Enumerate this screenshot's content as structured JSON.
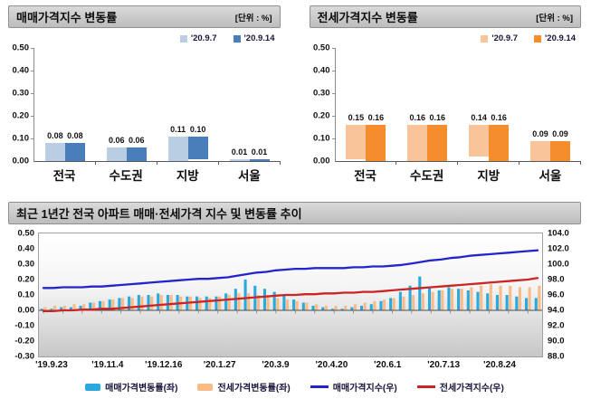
{
  "chart_data": [
    {
      "id": "sale-price-change",
      "type": "bar",
      "title": "매매가격지수 변동률",
      "unit_label": "[단위 : %]",
      "categories": [
        "전국",
        "수도권",
        "지방",
        "서울"
      ],
      "series": [
        {
          "name": "'20.9.7",
          "color": "#b9cde3",
          "values": [
            0.08,
            0.06,
            0.11,
            0.01
          ]
        },
        {
          "name": "'20.9.14",
          "color": "#4a7ebb",
          "values": [
            0.08,
            0.06,
            0.1,
            0.01
          ]
        }
      ],
      "ylim": [
        0,
        0.5
      ],
      "yticks": [
        "0.50",
        "0.40",
        "0.30",
        "0.20",
        "0.10",
        "0.00"
      ],
      "grid": false,
      "legend_position": "top-right",
      "value_labels": true
    },
    {
      "id": "jeonse-price-change",
      "type": "bar",
      "title": "전세가격지수 변동률",
      "unit_label": "[단위 : %]",
      "categories": [
        "전국",
        "수도권",
        "지방",
        "서울"
      ],
      "series": [
        {
          "name": "'20.9.7",
          "color": "#fac49a",
          "values": [
            0.15,
            0.16,
            0.14,
            0.09
          ]
        },
        {
          "name": "'20.9.14",
          "color": "#f58c2e",
          "values": [
            0.16,
            0.16,
            0.16,
            0.09
          ]
        }
      ],
      "ylim": [
        0,
        0.5
      ],
      "yticks": [
        "0.50",
        "0.40",
        "0.30",
        "0.20",
        "0.10",
        "0.00"
      ],
      "grid": false,
      "legend_position": "top-right",
      "value_labels": true
    },
    {
      "id": "trend-combo",
      "type": "combo",
      "title": "최근 1년간 전국 아파트 매매·전세가격 지수 및 변동률 추이",
      "n_points": 52,
      "x_tick_labels": [
        "'19.9.23",
        "'19.11.4",
        "'19.12.16",
        "'20.1.27",
        "'20.3.9",
        "'20.4.20",
        "'20.6.1",
        "'20.7.13",
        "'20.8.24"
      ],
      "x_tick_every_n_points": 6,
      "left_axis": {
        "min": -0.3,
        "max": 0.5,
        "step": 0.1,
        "ticks": [
          "0.50",
          "0.40",
          "0.30",
          "0.20",
          "0.10",
          "0.00",
          "-0.10",
          "-0.20",
          "-0.30"
        ]
      },
      "right_axis": {
        "min": 88.0,
        "max": 104.0,
        "step": 2.0,
        "ticks": [
          "104.0",
          "102.0",
          "100.0",
          "98.0",
          "96.0",
          "94.0",
          "92.0",
          "90.0",
          "88.0"
        ]
      },
      "grid": false,
      "legend_position": "bottom-center",
      "series": [
        {
          "name": "매매가격변동률(좌)",
          "type": "bar",
          "axis": "left",
          "color": "#2aa9dd",
          "values": [
            0.01,
            0.01,
            0.02,
            0.02,
            0.03,
            0.05,
            0.06,
            0.07,
            0.08,
            0.09,
            0.1,
            0.1,
            0.11,
            0.1,
            0.1,
            0.09,
            0.09,
            0.09,
            0.09,
            0.11,
            0.14,
            0.2,
            0.16,
            0.14,
            0.12,
            0.1,
            0.07,
            0.05,
            0.03,
            0.02,
            0.01,
            0.01,
            0.02,
            0.03,
            0.04,
            0.06,
            0.08,
            0.12,
            0.16,
            0.22,
            0.15,
            0.13,
            0.15,
            0.14,
            0.13,
            0.12,
            0.11,
            0.1,
            0.1,
            0.09,
            0.08,
            0.08
          ]
        },
        {
          "name": "전세가격변동률(좌)",
          "type": "bar",
          "axis": "left",
          "color": "#f9bc87",
          "values": [
            0.02,
            0.03,
            0.03,
            0.04,
            0.04,
            0.05,
            0.06,
            0.07,
            0.08,
            0.08,
            0.09,
            0.09,
            0.1,
            0.1,
            0.09,
            0.09,
            0.08,
            0.08,
            0.09,
            0.1,
            0.11,
            0.11,
            0.1,
            0.09,
            0.08,
            0.07,
            0.06,
            0.05,
            0.04,
            0.03,
            0.03,
            0.03,
            0.04,
            0.05,
            0.06,
            0.07,
            0.08,
            0.09,
            0.1,
            0.11,
            0.12,
            0.13,
            0.14,
            0.14,
            0.15,
            0.16,
            0.17,
            0.16,
            0.16,
            0.15,
            0.15,
            0.16
          ]
        },
        {
          "name": "매매가격지수(우)",
          "type": "line",
          "axis": "right",
          "color": "#2424cc",
          "values": [
            96.9,
            96.9,
            97.0,
            97.0,
            97.0,
            97.1,
            97.1,
            97.2,
            97.3,
            97.4,
            97.5,
            97.6,
            97.7,
            97.8,
            97.9,
            98.0,
            98.1,
            98.1,
            98.2,
            98.3,
            98.5,
            98.7,
            98.9,
            99.0,
            99.2,
            99.3,
            99.4,
            99.4,
            99.5,
            99.5,
            99.5,
            99.5,
            99.6,
            99.6,
            99.7,
            99.7,
            99.8,
            99.9,
            100.1,
            100.3,
            100.5,
            100.6,
            100.8,
            100.9,
            101.1,
            101.2,
            101.3,
            101.4,
            101.5,
            101.6,
            101.7,
            101.8
          ]
        },
        {
          "name": "전세가격지수(우)",
          "type": "line",
          "axis": "right",
          "color": "#cc2424",
          "values": [
            93.9,
            93.9,
            94.0,
            94.0,
            94.1,
            94.1,
            94.2,
            94.2,
            94.3,
            94.4,
            94.5,
            94.6,
            94.7,
            94.8,
            94.9,
            95.0,
            95.1,
            95.2,
            95.3,
            95.4,
            95.5,
            95.6,
            95.7,
            95.8,
            95.9,
            96.0,
            96.0,
            96.1,
            96.1,
            96.2,
            96.2,
            96.3,
            96.3,
            96.4,
            96.4,
            96.5,
            96.6,
            96.7,
            96.8,
            96.9,
            97.0,
            97.1,
            97.2,
            97.3,
            97.4,
            97.5,
            97.6,
            97.7,
            97.8,
            97.9,
            98.0,
            98.2
          ]
        }
      ]
    }
  ]
}
